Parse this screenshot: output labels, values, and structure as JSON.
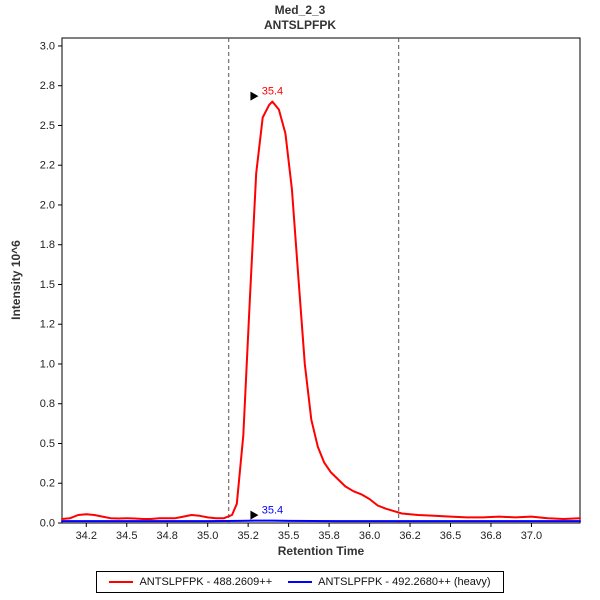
{
  "window": {
    "title": "Med_2_3",
    "subtitle": "ANTSLPFPK"
  },
  "chart_data": {
    "type": "line",
    "title": "Med_2_3",
    "subtitle": "ANTSLPFPK",
    "xlabel": "Retention Time",
    "ylabel": "Intensity 10^6",
    "xlim": [
      34.1,
      37.3
    ],
    "ylim": [
      0,
      3.05
    ],
    "grid": false,
    "legend_position": "bottom",
    "axis_color": "#000000",
    "boundary_dash_color": "#555555",
    "x_ticks": [
      34.25,
      34.5,
      34.75,
      35.0,
      35.25,
      35.5,
      35.75,
      36.0,
      36.25,
      36.5,
      36.75,
      37.0
    ],
    "x_tick_labels": [
      "34.2",
      "34.5",
      "34.8",
      "35.0",
      "35.2",
      "35.5",
      "35.8",
      "36.0",
      "36.2",
      "36.5",
      "36.8",
      "37.0"
    ],
    "y_ticks": [
      0,
      0.25,
      0.5,
      0.75,
      1.0,
      1.25,
      1.5,
      1.75,
      2.0,
      2.25,
      2.5,
      2.75,
      3.0
    ],
    "y_tick_labels": [
      "0.0",
      "0.2",
      "0.5",
      "0.8",
      "1.0",
      "1.2",
      "1.5",
      "1.8",
      "2.0",
      "2.2",
      "2.5",
      "2.8",
      "3.0"
    ],
    "peak_boundaries_x": [
      35.13,
      36.18
    ],
    "series": [
      {
        "name": "ANTSLPFPK - 488.2609++",
        "color": "#ff0000",
        "points": [
          [
            34.1,
            0.025
          ],
          [
            34.15,
            0.03
          ],
          [
            34.2,
            0.05
          ],
          [
            34.25,
            0.055
          ],
          [
            34.3,
            0.05
          ],
          [
            34.35,
            0.04
          ],
          [
            34.4,
            0.03
          ],
          [
            34.45,
            0.028
          ],
          [
            34.5,
            0.03
          ],
          [
            34.55,
            0.028
          ],
          [
            34.6,
            0.025
          ],
          [
            34.65,
            0.025
          ],
          [
            34.7,
            0.03
          ],
          [
            34.75,
            0.03
          ],
          [
            34.8,
            0.03
          ],
          [
            34.85,
            0.04
          ],
          [
            34.9,
            0.05
          ],
          [
            34.95,
            0.045
          ],
          [
            35.0,
            0.035
          ],
          [
            35.05,
            0.03
          ],
          [
            35.1,
            0.03
          ],
          [
            35.15,
            0.05
          ],
          [
            35.18,
            0.12
          ],
          [
            35.22,
            0.55
          ],
          [
            35.26,
            1.4
          ],
          [
            35.3,
            2.2
          ],
          [
            35.34,
            2.55
          ],
          [
            35.38,
            2.63
          ],
          [
            35.4,
            2.65
          ],
          [
            35.44,
            2.6
          ],
          [
            35.48,
            2.45
          ],
          [
            35.52,
            2.1
          ],
          [
            35.56,
            1.55
          ],
          [
            35.6,
            1.0
          ],
          [
            35.64,
            0.65
          ],
          [
            35.68,
            0.48
          ],
          [
            35.72,
            0.38
          ],
          [
            35.76,
            0.32
          ],
          [
            35.8,
            0.28
          ],
          [
            35.85,
            0.23
          ],
          [
            35.9,
            0.2
          ],
          [
            35.95,
            0.18
          ],
          [
            36.0,
            0.15
          ],
          [
            36.05,
            0.11
          ],
          [
            36.1,
            0.09
          ],
          [
            36.15,
            0.075
          ],
          [
            36.2,
            0.06
          ],
          [
            36.3,
            0.05
          ],
          [
            36.4,
            0.045
          ],
          [
            36.5,
            0.04
          ],
          [
            36.6,
            0.035
          ],
          [
            36.7,
            0.035
          ],
          [
            36.8,
            0.04
          ],
          [
            36.9,
            0.035
          ],
          [
            37.0,
            0.04
          ],
          [
            37.1,
            0.03
          ],
          [
            37.2,
            0.025
          ],
          [
            37.3,
            0.03
          ]
        ],
        "annotation": {
          "label": "35.4",
          "x": 35.4,
          "y": 2.65,
          "color": "#ff0000"
        }
      },
      {
        "name": "ANTSLPFPK - 492.2680++ (heavy)",
        "color": "#0000ff",
        "points": [
          [
            34.1,
            0.012
          ],
          [
            34.5,
            0.012
          ],
          [
            35.0,
            0.012
          ],
          [
            35.2,
            0.013
          ],
          [
            35.3,
            0.015
          ],
          [
            35.4,
            0.015
          ],
          [
            35.5,
            0.013
          ],
          [
            35.8,
            0.012
          ],
          [
            36.2,
            0.012
          ],
          [
            36.6,
            0.012
          ],
          [
            37.0,
            0.012
          ],
          [
            37.3,
            0.012
          ]
        ],
        "annotation": {
          "label": "35.4",
          "x": 35.4,
          "y": 0.015,
          "color": "#0000ff"
        }
      }
    ]
  }
}
